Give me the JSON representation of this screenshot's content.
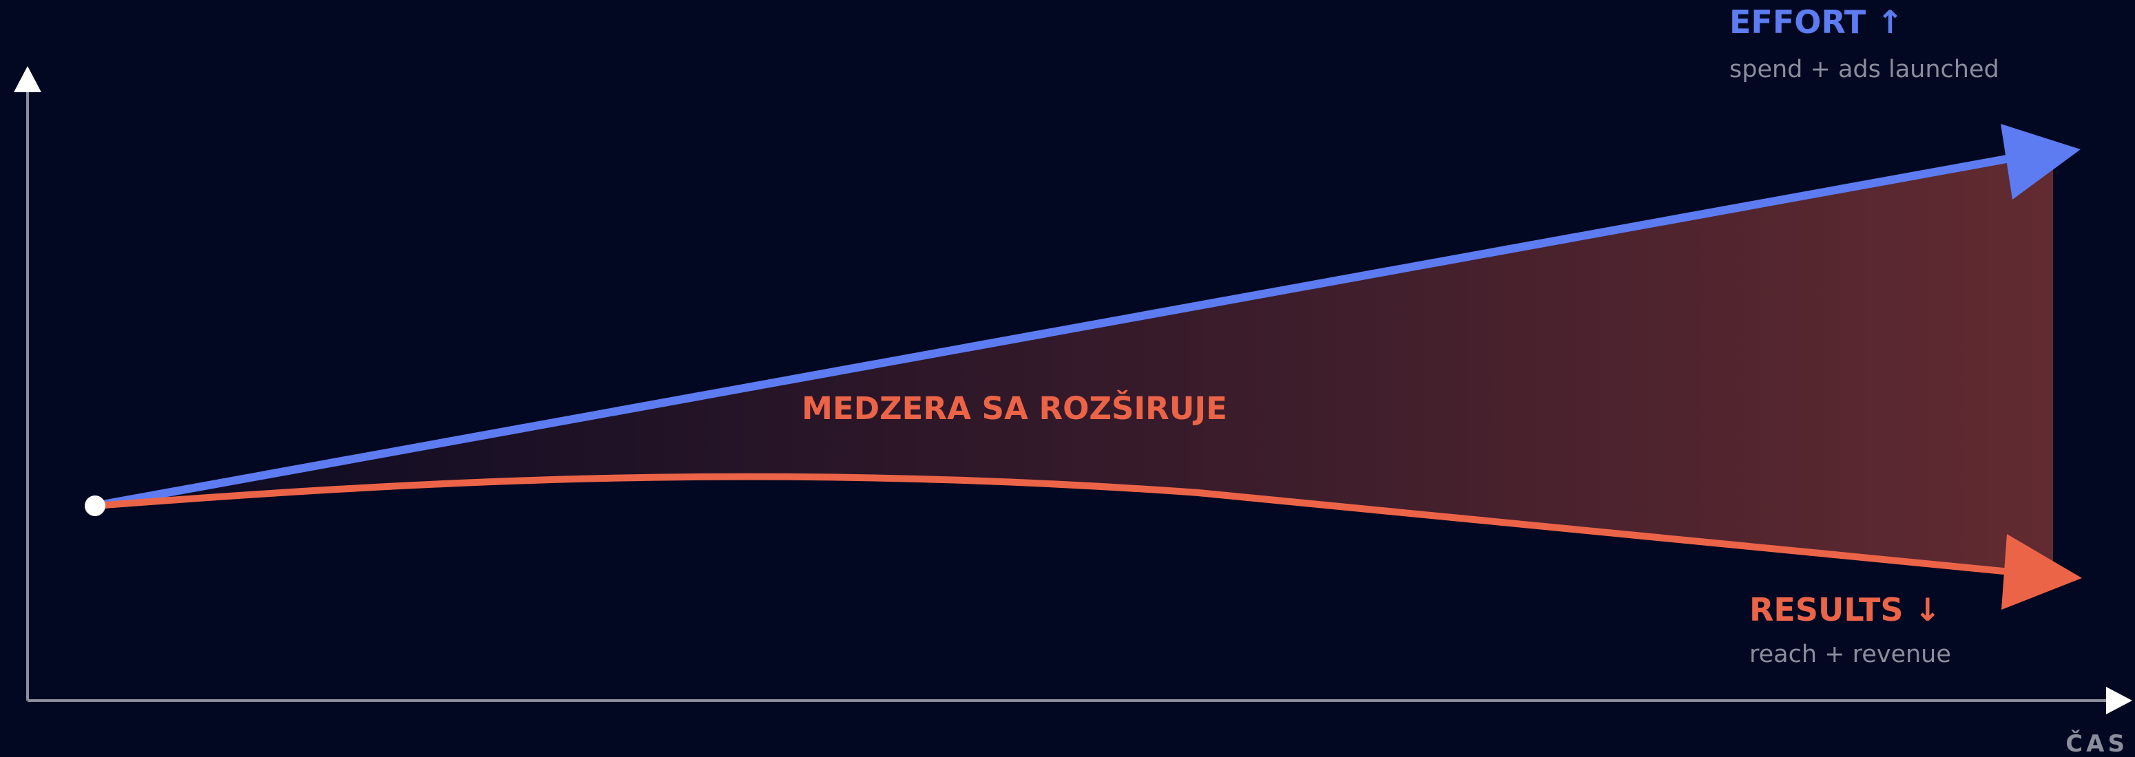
{
  "effort": {
    "label": "EFFORT ↑",
    "description": "spend + ads launched"
  },
  "results": {
    "label": "RESULTS ↓",
    "description": "reach + revenue"
  },
  "gap_label": "MEDZERA SA ROZŠIRUJE",
  "x_axis_label": "ČAS"
}
